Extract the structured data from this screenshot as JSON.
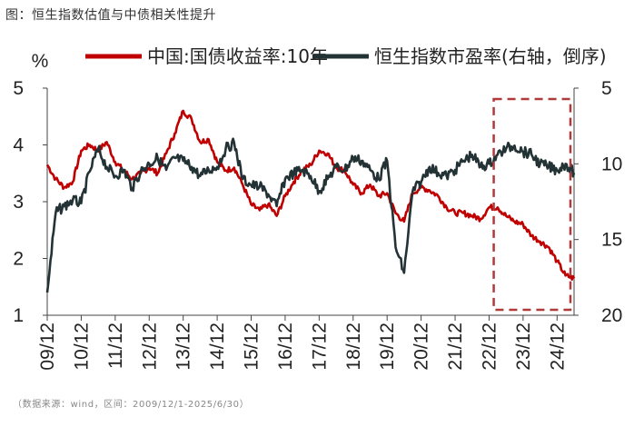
{
  "figure": {
    "title": "图：恒生指数估值与中债相关性提升",
    "source": "（数据来源：wind，区间：2009/12/1-2025/6/30）"
  },
  "chart_data": {
    "type": "line",
    "left_axis": {
      "unit": "%",
      "ylim": [
        1,
        5
      ],
      "ticks": [
        "1",
        "2",
        "3",
        "4",
        "5"
      ]
    },
    "right_axis": {
      "ylim": [
        5,
        20
      ],
      "inverted": true,
      "ticks": [
        "5",
        "10",
        "15",
        "20"
      ]
    },
    "x_tick_labels": [
      "09/12",
      "10/12",
      "11/12",
      "12/12",
      "13/12",
      "14/12",
      "15/12",
      "16/12",
      "17/12",
      "18/12",
      "19/12",
      "20/12",
      "21/12",
      "22/12",
      "23/12",
      "24/12"
    ],
    "x": [
      "2009-12",
      "2010-03",
      "2010-06",
      "2010-09",
      "2010-12",
      "2011-03",
      "2011-06",
      "2011-09",
      "2011-12",
      "2012-03",
      "2012-06",
      "2012-09",
      "2012-12",
      "2013-03",
      "2013-06",
      "2013-09",
      "2013-12",
      "2014-03",
      "2014-06",
      "2014-09",
      "2014-12",
      "2015-03",
      "2015-06",
      "2015-09",
      "2015-12",
      "2016-03",
      "2016-06",
      "2016-09",
      "2016-12",
      "2017-03",
      "2017-06",
      "2017-09",
      "2017-12",
      "2018-03",
      "2018-06",
      "2018-09",
      "2018-12",
      "2019-03",
      "2019-06",
      "2019-09",
      "2019-12",
      "2020-03",
      "2020-06",
      "2020-09",
      "2020-12",
      "2021-03",
      "2021-06",
      "2021-09",
      "2021-12",
      "2022-03",
      "2022-06",
      "2022-09",
      "2022-12",
      "2023-03",
      "2023-06",
      "2023-09",
      "2023-12",
      "2024-03",
      "2024-06",
      "2024-09",
      "2024-12",
      "2025-03",
      "2025-06"
    ],
    "series": [
      {
        "name": "中国:国债收益率:10年",
        "axis": "left",
        "color": "#c00000",
        "values": [
          3.65,
          3.4,
          3.25,
          3.35,
          3.9,
          4.0,
          3.9,
          4.05,
          3.7,
          3.55,
          3.4,
          3.5,
          3.6,
          3.5,
          3.85,
          4.2,
          4.6,
          4.45,
          4.05,
          4.1,
          3.7,
          3.55,
          3.6,
          3.3,
          2.95,
          2.85,
          2.95,
          2.75,
          3.1,
          3.35,
          3.55,
          3.65,
          3.9,
          3.85,
          3.6,
          3.55,
          3.3,
          3.15,
          3.3,
          3.1,
          3.15,
          2.8,
          2.65,
          3.15,
          3.25,
          3.2,
          3.1,
          2.9,
          2.8,
          2.8,
          2.75,
          2.7,
          2.9,
          2.9,
          2.75,
          2.65,
          2.6,
          2.4,
          2.3,
          2.2,
          1.95,
          1.7,
          1.65
        ]
      },
      {
        "name": "恒生指数市盈率(右轴，倒序)",
        "axis": "right",
        "color": "#233235",
        "values": [
          18.5,
          13.2,
          12.8,
          12.4,
          12.6,
          10.5,
          9.0,
          10.2,
          10.8,
          10.4,
          11.6,
          10.5,
          10.0,
          9.6,
          10.4,
          9.6,
          9.8,
          10.2,
          10.8,
          10.4,
          10.2,
          9.0,
          8.6,
          11.0,
          11.4,
          11.5,
          12.0,
          12.8,
          11.0,
          10.6,
          10.4,
          10.8,
          11.8,
          11.0,
          10.2,
          10.4,
          9.6,
          9.8,
          10.4,
          11.0,
          9.8,
          15.5,
          17.2,
          11.8,
          11.2,
          10.2,
          10.6,
          10.8,
          10.4,
          9.8,
          9.4,
          10.2,
          10.0,
          9.4,
          9.0,
          8.8,
          9.2,
          9.4,
          10.0,
          10.2,
          10.4,
          10.0,
          10.6
        ]
      }
    ],
    "highlight_box": {
      "x_start": "2023-01",
      "x_end": "2025-06"
    }
  }
}
